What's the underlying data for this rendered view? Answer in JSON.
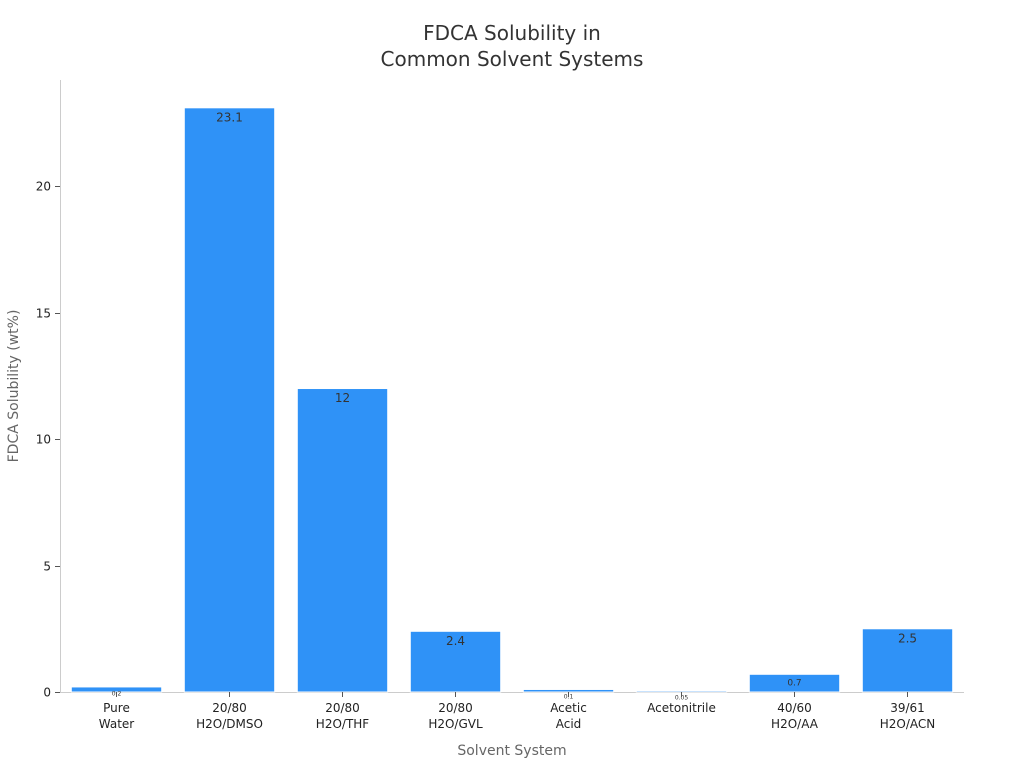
{
  "chart_data": {
    "type": "bar",
    "title": [
      "FDCA Solubility in",
      "Common Solvent Systems"
    ],
    "xlabel": "Solvent System",
    "ylabel": "FDCA Solubility (wt%)",
    "categories": [
      [
        "Pure",
        "Water"
      ],
      [
        "20/80",
        "H2O/DMSO"
      ],
      [
        "20/80",
        "H2O/THF"
      ],
      [
        "20/80",
        "H2O/GVL"
      ],
      [
        "Acetic",
        "Acid"
      ],
      [
        "Acetonitrile"
      ],
      [
        "40/60",
        "H2O/AA"
      ],
      [
        "39/61",
        "H2O/ACN"
      ]
    ],
    "values": [
      0.2,
      23.1,
      12,
      2.4,
      0.1,
      0.05,
      0.7,
      2.5
    ],
    "data_labels": [
      "0.2",
      "23.1",
      "12",
      "2.4",
      "0.1",
      "0.05",
      "0.7",
      "2.5"
    ],
    "yticks": [
      0,
      5,
      10,
      15,
      20
    ],
    "ylim": [
      0,
      24.2
    ],
    "grid": false,
    "legend": "none",
    "colors": {
      "bar": "#2f92f7",
      "bar_edge": "#ffffff"
    }
  }
}
